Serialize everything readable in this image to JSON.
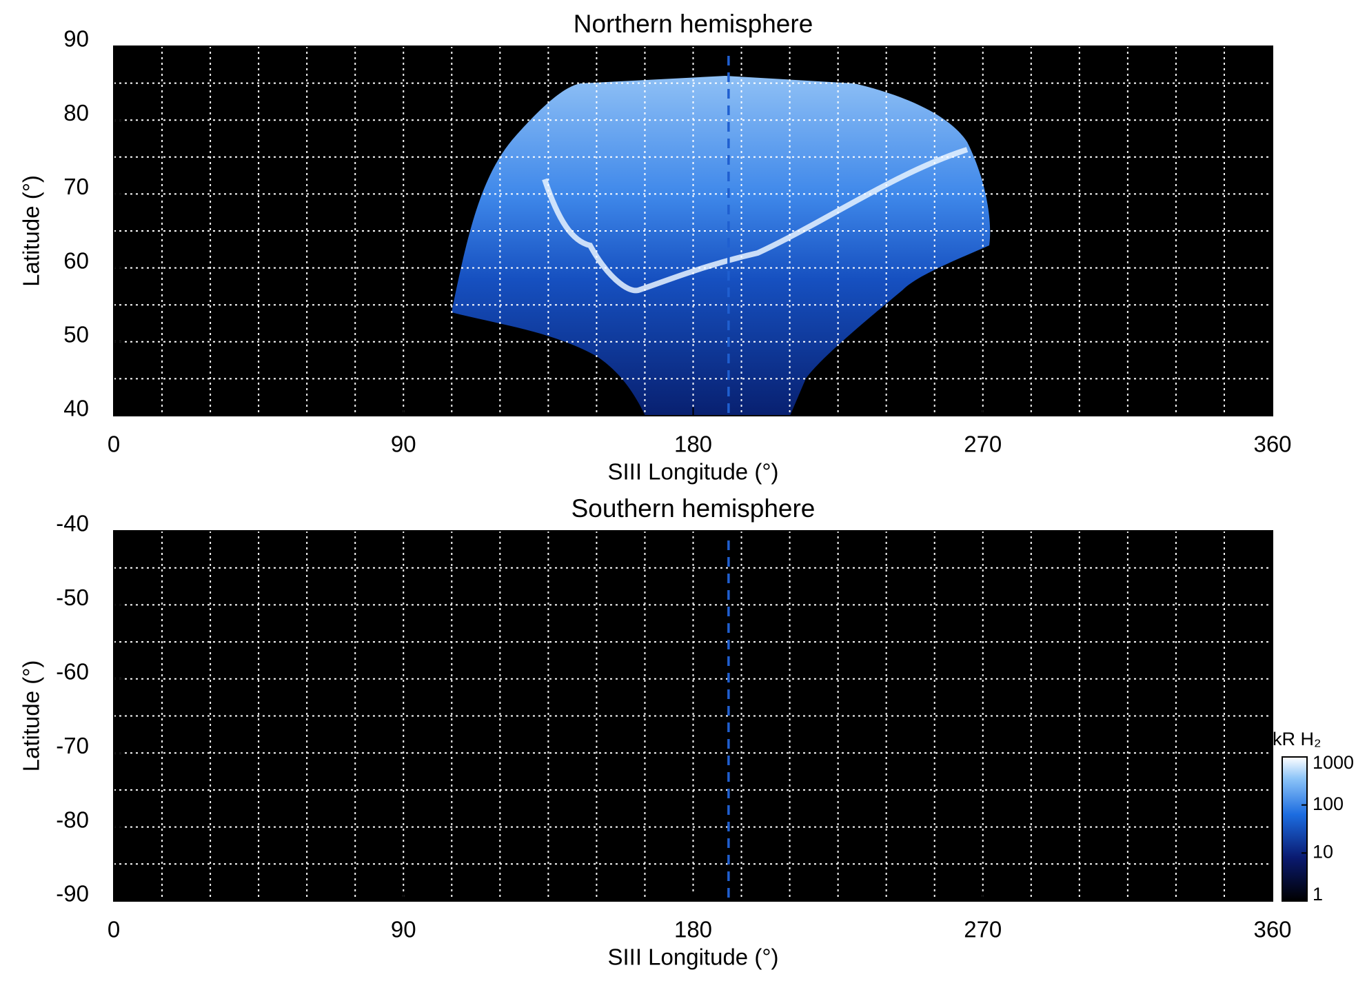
{
  "chart_data": [
    {
      "type": "image",
      "title": "Northern hemisphere",
      "x_label": "SIII Longitude (°)",
      "y_label": "Latitude (°)",
      "xlim": [
        0,
        360
      ],
      "xticks": [
        0,
        90,
        180,
        270,
        360
      ],
      "xminorticks": [
        15,
        30,
        45,
        60,
        75,
        105,
        120,
        135,
        150,
        165,
        195,
        210,
        225,
        240,
        255,
        285,
        300,
        315,
        330,
        345
      ],
      "ylim": [
        40,
        90
      ],
      "yticks": [
        40,
        50,
        60,
        70,
        80,
        90
      ],
      "yminorticks": [
        45,
        55,
        65,
        75,
        85
      ],
      "grid": true,
      "marker_longitude": 191,
      "marker_color": "#1f5fd0"
    },
    {
      "type": "image",
      "title": "Southern hemisphere",
      "x_label": "SIII Longitude (°)",
      "y_label": "Latitude (°)",
      "xlim": [
        0,
        360
      ],
      "xticks": [
        0,
        90,
        180,
        270,
        360
      ],
      "xminorticks": [
        15,
        30,
        45,
        60,
        75,
        105,
        120,
        135,
        150,
        165,
        195,
        210,
        225,
        240,
        255,
        285,
        300,
        315,
        330,
        345
      ],
      "ylim": [
        -90,
        -40
      ],
      "yticks": [
        -90,
        -80,
        -70,
        -60,
        -50,
        -40
      ],
      "yminorticks": [
        -85,
        -75,
        -65,
        -55,
        -45
      ],
      "grid": true,
      "marker_longitude": 191,
      "marker_color": "#1f5fd0",
      "colorbar": {
        "label": "kR H₂",
        "scale": "log",
        "lim": [
          1,
          1000
        ],
        "ticks": [
          1,
          10,
          100,
          1000
        ]
      }
    }
  ]
}
